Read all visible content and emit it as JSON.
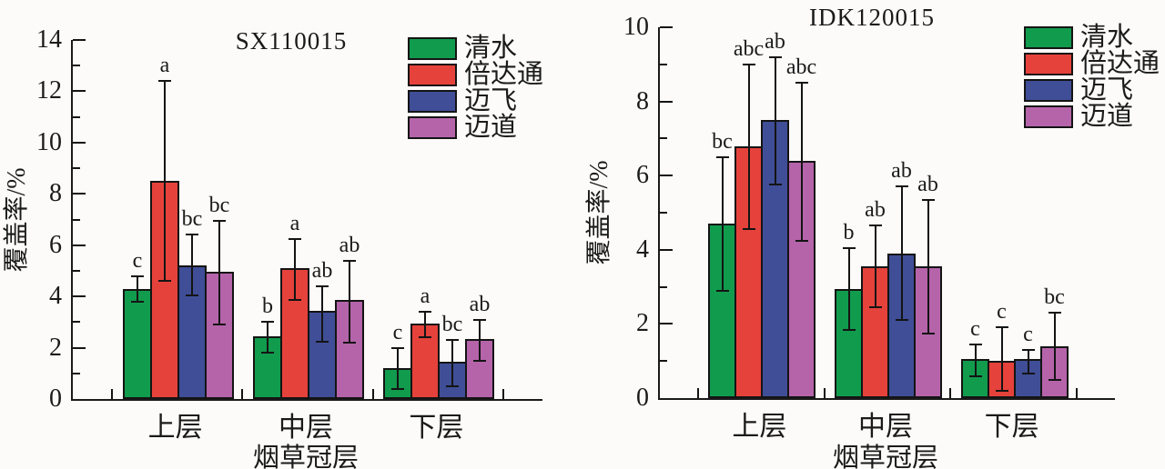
{
  "ink_color": "#1a1a1a",
  "background_color": "#fcfbf9",
  "series_colors": {
    "qingshui": "#119b4d",
    "beidatong": "#e5423b",
    "maifei": "#3f4e96",
    "maidao": "#b564aa"
  },
  "chart_data": [
    {
      "type": "bar",
      "title": "SX110015",
      "xlabel": "烟草冠层",
      "ylabel": "覆盖率/%",
      "ylim": [
        0,
        14
      ],
      "ytick_major": 2,
      "ytick_minor": 1,
      "grid": false,
      "legend_position": "top-right",
      "categories": [
        "上层",
        "中层",
        "下层"
      ],
      "series": [
        {
          "name": "清水",
          "color": "#119b4d",
          "values": [
            4.3,
            2.45,
            1.2
          ],
          "err_low": [
            3.8,
            1.8,
            0.4
          ],
          "err_high": [
            4.8,
            3.0,
            2.0
          ],
          "sig": [
            "c",
            "b",
            "c"
          ]
        },
        {
          "name": "倍达通",
          "color": "#e5423b",
          "values": [
            8.5,
            5.1,
            2.95
          ],
          "err_low": [
            4.6,
            3.85,
            2.4
          ],
          "err_high": [
            12.4,
            6.25,
            3.4
          ],
          "sig": [
            "a",
            "a",
            "a"
          ]
        },
        {
          "name": "迈飞",
          "color": "#3f4e96",
          "values": [
            5.2,
            3.45,
            1.45
          ],
          "err_low": [
            4.05,
            2.25,
            0.5
          ],
          "err_high": [
            6.4,
            4.4,
            2.3
          ],
          "sig": [
            "bc",
            "ab",
            "bc"
          ]
        },
        {
          "name": "迈道",
          "color": "#b564aa",
          "values": [
            4.95,
            3.85,
            2.35
          ],
          "err_low": [
            2.9,
            2.2,
            1.5
          ],
          "err_high": [
            6.95,
            5.4,
            3.1
          ],
          "sig": [
            "bc",
            "ab",
            "ab"
          ]
        }
      ]
    },
    {
      "type": "bar",
      "title": "IDK120015",
      "xlabel": "烟草冠层",
      "ylabel": "覆盖率/%",
      "ylim": [
        0,
        10
      ],
      "ytick_major": 2,
      "ytick_minor": 1,
      "grid": false,
      "legend_position": "top-right",
      "categories": [
        "上层",
        "中层",
        "下层"
      ],
      "series": [
        {
          "name": "清水",
          "color": "#119b4d",
          "values": [
            4.7,
            2.95,
            1.05
          ],
          "err_low": [
            2.9,
            1.85,
            0.6
          ],
          "err_high": [
            6.5,
            4.05,
            1.45
          ],
          "sig": [
            "bc",
            "b",
            "c"
          ]
        },
        {
          "name": "倍达通",
          "color": "#e5423b",
          "values": [
            6.8,
            3.55,
            1.0
          ],
          "err_low": [
            4.55,
            2.45,
            0.2
          ],
          "err_high": [
            9.0,
            4.65,
            1.9
          ],
          "sig": [
            "abc",
            "ab",
            "c"
          ]
        },
        {
          "name": "迈飞",
          "color": "#3f4e96",
          "values": [
            7.5,
            3.9,
            1.05
          ],
          "err_low": [
            5.75,
            2.1,
            0.65
          ],
          "err_high": [
            9.2,
            5.7,
            1.3
          ],
          "sig": [
            "ab",
            "ab",
            "c"
          ]
        },
        {
          "name": "迈道",
          "color": "#b564aa",
          "values": [
            6.4,
            3.55,
            1.4
          ],
          "err_low": [
            4.25,
            1.75,
            0.5
          ],
          "err_high": [
            8.5,
            5.35,
            2.3
          ],
          "sig": [
            "abc",
            "ab",
            "bc"
          ]
        }
      ]
    }
  ]
}
